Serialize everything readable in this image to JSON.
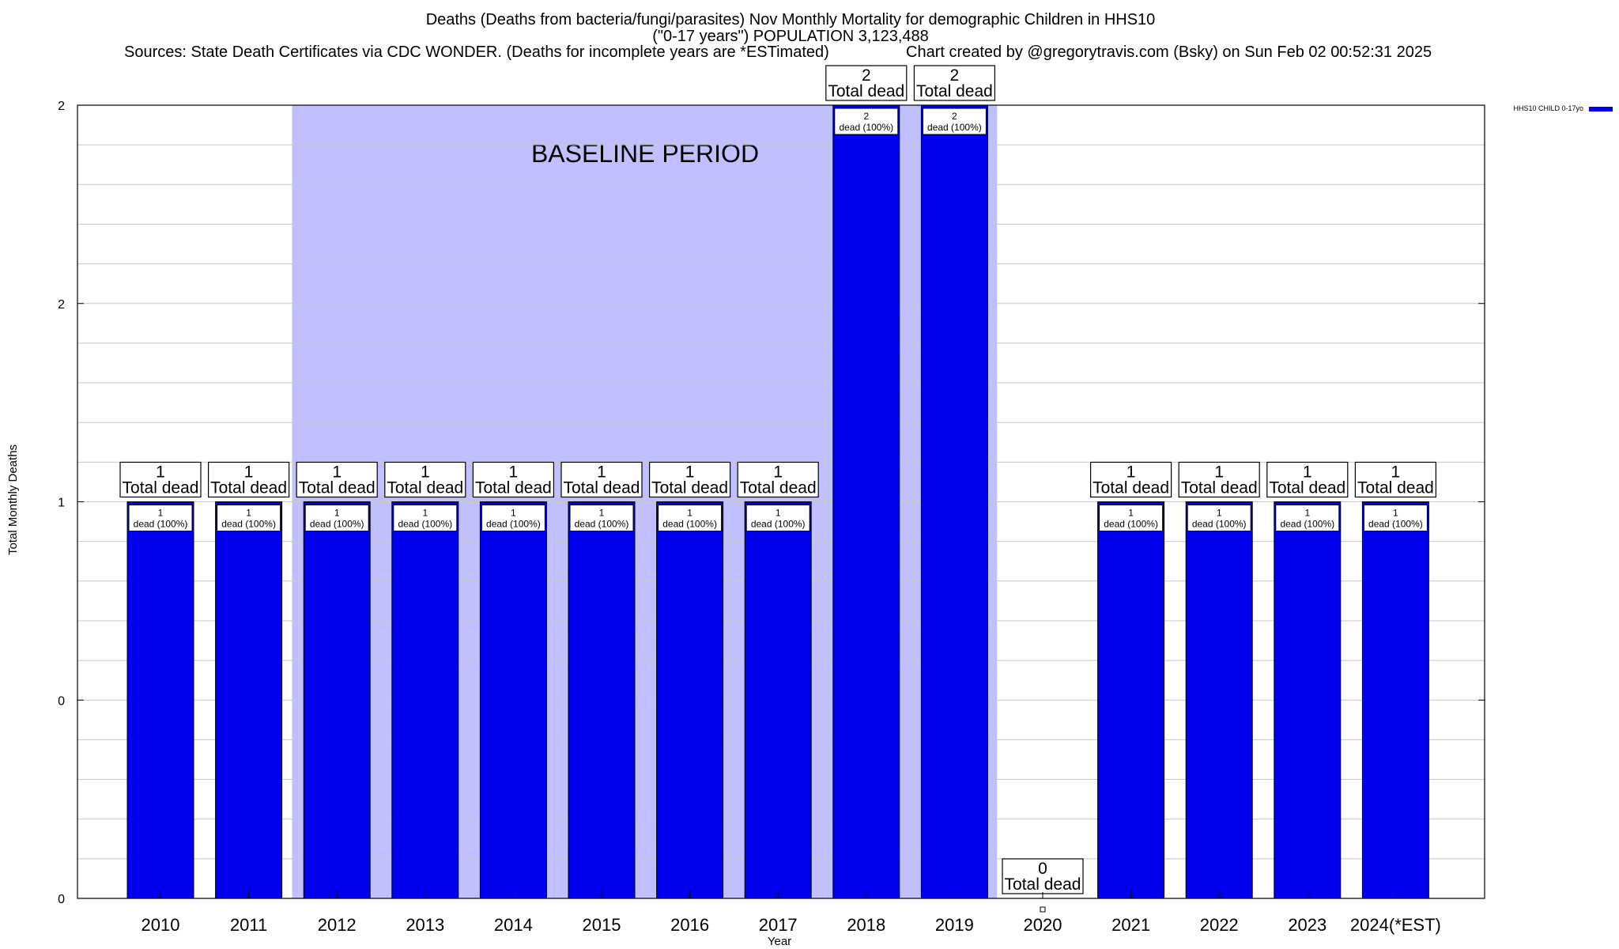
{
  "chart_data": {
    "type": "bar",
    "title_lines": [
      "Deaths (Deaths from bacteria/fungi/parasites) Nov Monthly Mortality for demographic Children in HHS10",
      "(\"0-17 years\") POPULATION 3,123,488"
    ],
    "sources": "Sources: State Death Certificates via CDC WONDER. (Deaths for incomplete years are *ESTimated)",
    "credit": "Chart created by @gregorytravis.com (Bsky) on Sun Feb 02 00:52:31 2025",
    "xlabel": "Year",
    "ylabel": "Total Monthly Deaths",
    "y_tick_labels": [
      "0",
      "0",
      "1",
      "2",
      "2"
    ],
    "ylim": [
      0,
      2
    ],
    "grid": true,
    "categories": [
      "2010",
      "2011",
      "2012",
      "2013",
      "2014",
      "2015",
      "2016",
      "2017",
      "2018",
      "2019",
      "2020",
      "2021",
      "2022",
      "2023",
      "2024(*EST)"
    ],
    "series": [
      {
        "name": "HHS10 CHILD 0-17yo",
        "color": "#0000ee",
        "values": [
          1,
          1,
          1,
          1,
          1,
          1,
          1,
          1,
          2,
          2,
          0,
          1,
          1,
          1,
          1
        ]
      }
    ],
    "total_label_text": "Total dead",
    "inner_label_suffix": "dead (100%)",
    "baseline_period": {
      "label": "BASELINE PERIOD",
      "from": "2012",
      "to": "2019",
      "color": "#c0c0ff"
    },
    "legend_position": "top-right"
  }
}
